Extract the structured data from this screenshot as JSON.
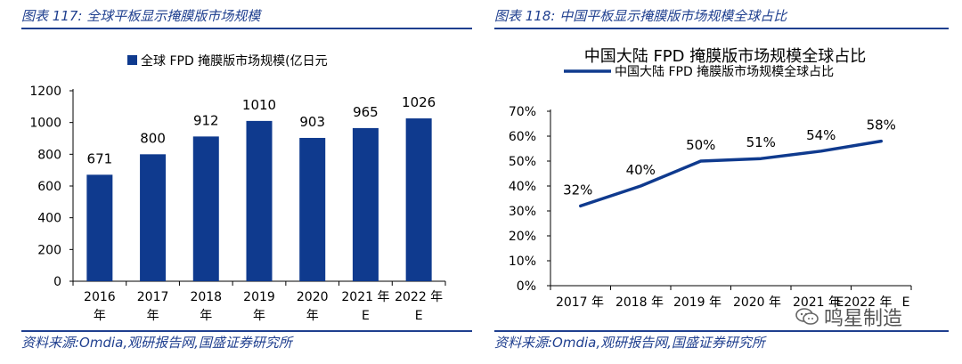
{
  "left": {
    "figure_title": "图表 117:  全球平板显示掩膜版市场规模",
    "source": "资料来源:Omdia,观研报告网,国盛证券研究所"
  },
  "right": {
    "figure_title": "图表 118:  中国平板显示掩膜版市场规模全球占比",
    "source": "资料来源:Omdia,观研报告网,国盛证券研究所"
  },
  "watermark": {
    "text": "鸣星制造",
    "icon": "wechat-icon"
  },
  "colors": {
    "accent": "#1f3f8f",
    "bar": "#0f3a8e",
    "line": "#0f3a8e"
  },
  "chart_data": [
    {
      "type": "bar",
      "title": "",
      "legend": [
        "全球 FPD 掩膜版市场规模(亿日元"
      ],
      "legend_position": "top",
      "categories": [
        "2016年",
        "2017年",
        "2018年",
        "2019年",
        "2020年",
        "2021年E",
        "2022年E"
      ],
      "category_lines": [
        [
          "2016",
          "年"
        ],
        [
          "2017",
          "年"
        ],
        [
          "2018",
          "年"
        ],
        [
          "2019",
          "年"
        ],
        [
          "2020",
          "年"
        ],
        [
          "2021 年",
          "E"
        ],
        [
          "2022 年",
          "E"
        ]
      ],
      "values": [
        671,
        800,
        912,
        1010,
        903,
        965,
        1026
      ],
      "data_labels": [
        "671",
        "800",
        "912",
        "1010",
        "903",
        "965",
        "1026"
      ],
      "ylim": [
        0,
        1200
      ],
      "yticks": [
        0,
        200,
        400,
        600,
        800,
        1000,
        1200
      ],
      "ytick_labels": [
        "0",
        "200",
        "400",
        "600",
        "800",
        "1000",
        "1200"
      ],
      "xlabel": "",
      "ylabel": "",
      "grid": false
    },
    {
      "type": "line",
      "title": "中国大陆 FPD 掩膜版市场规模全球占比",
      "legend": [
        "中国大陆 FPD 掩膜版市场规模全球占比"
      ],
      "legend_position": "top",
      "categories": [
        "2017 年",
        "2018 年",
        "2019 年",
        "2020 年",
        "2021 年 E",
        "2022 年 E"
      ],
      "x_labels": [
        "2017 年",
        "2018 年",
        "2019 年",
        "2020 年",
        "2021 年",
        "E2022 年",
        "E"
      ],
      "values": [
        32,
        40,
        50,
        51,
        54,
        58
      ],
      "data_labels": [
        "32%",
        "40%",
        "50%",
        "51%",
        "54%",
        "58%"
      ],
      "ylim": [
        0,
        70
      ],
      "yticks": [
        0,
        10,
        20,
        30,
        40,
        50,
        60,
        70
      ],
      "ytick_labels": [
        "0%",
        "10%",
        "20%",
        "30%",
        "40%",
        "50%",
        "60%",
        "70%"
      ],
      "xlabel": "",
      "ylabel": "",
      "grid": false
    }
  ]
}
